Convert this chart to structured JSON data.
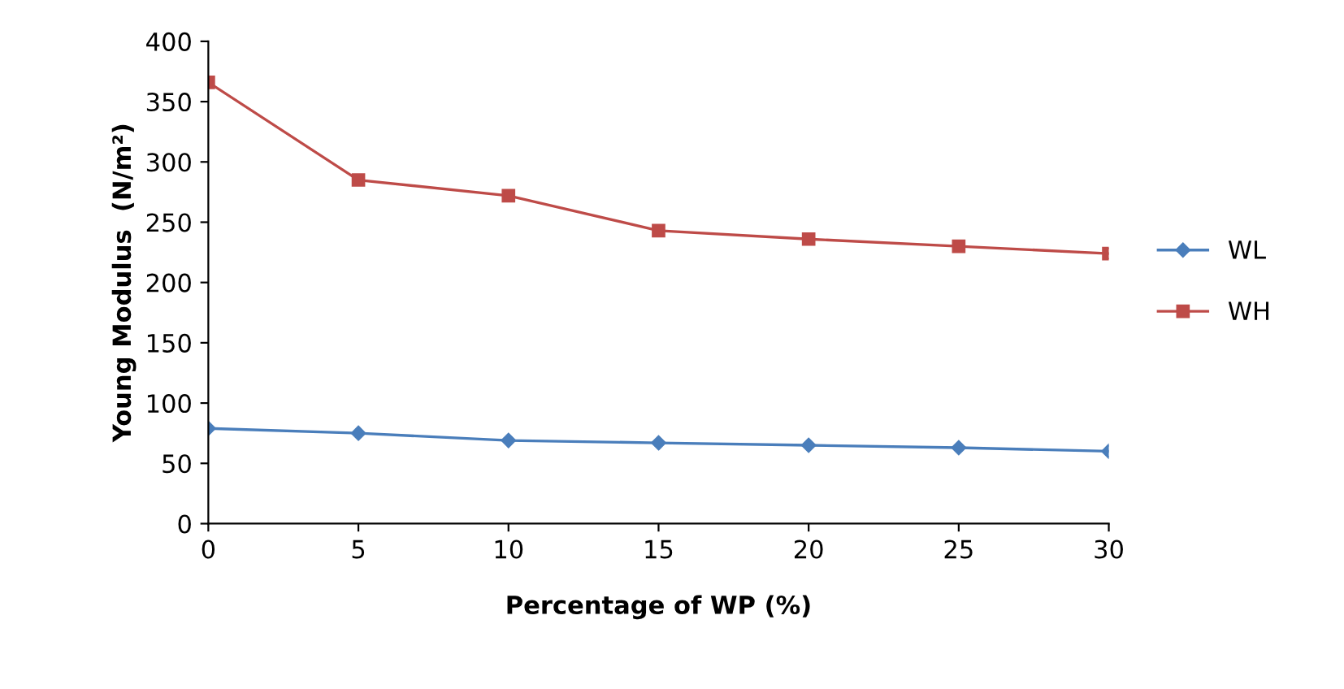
{
  "chart_data": {
    "type": "line",
    "xlabel": "Percentage of WP (%)",
    "ylabel": "Young Modulus  (N/m²)",
    "x": [
      0,
      5,
      10,
      15,
      20,
      25,
      30
    ],
    "series": [
      {
        "name": "WL",
        "color": "#4a7ebb",
        "marker": "diamond",
        "values": [
          79,
          75,
          69,
          67,
          65,
          63,
          60
        ]
      },
      {
        "name": "WH",
        "color": "#be4b48",
        "marker": "square",
        "values": [
          366,
          285,
          272,
          243,
          236,
          230,
          224
        ]
      }
    ],
    "xlim": [
      0,
      30
    ],
    "xticks": [
      0,
      5,
      10,
      15,
      20,
      25,
      30
    ],
    "ylim": [
      0,
      400
    ],
    "yticks": [
      0,
      50,
      100,
      150,
      200,
      250,
      300,
      350,
      400
    ],
    "grid": false,
    "legend": "right",
    "line_style": "solid"
  }
}
